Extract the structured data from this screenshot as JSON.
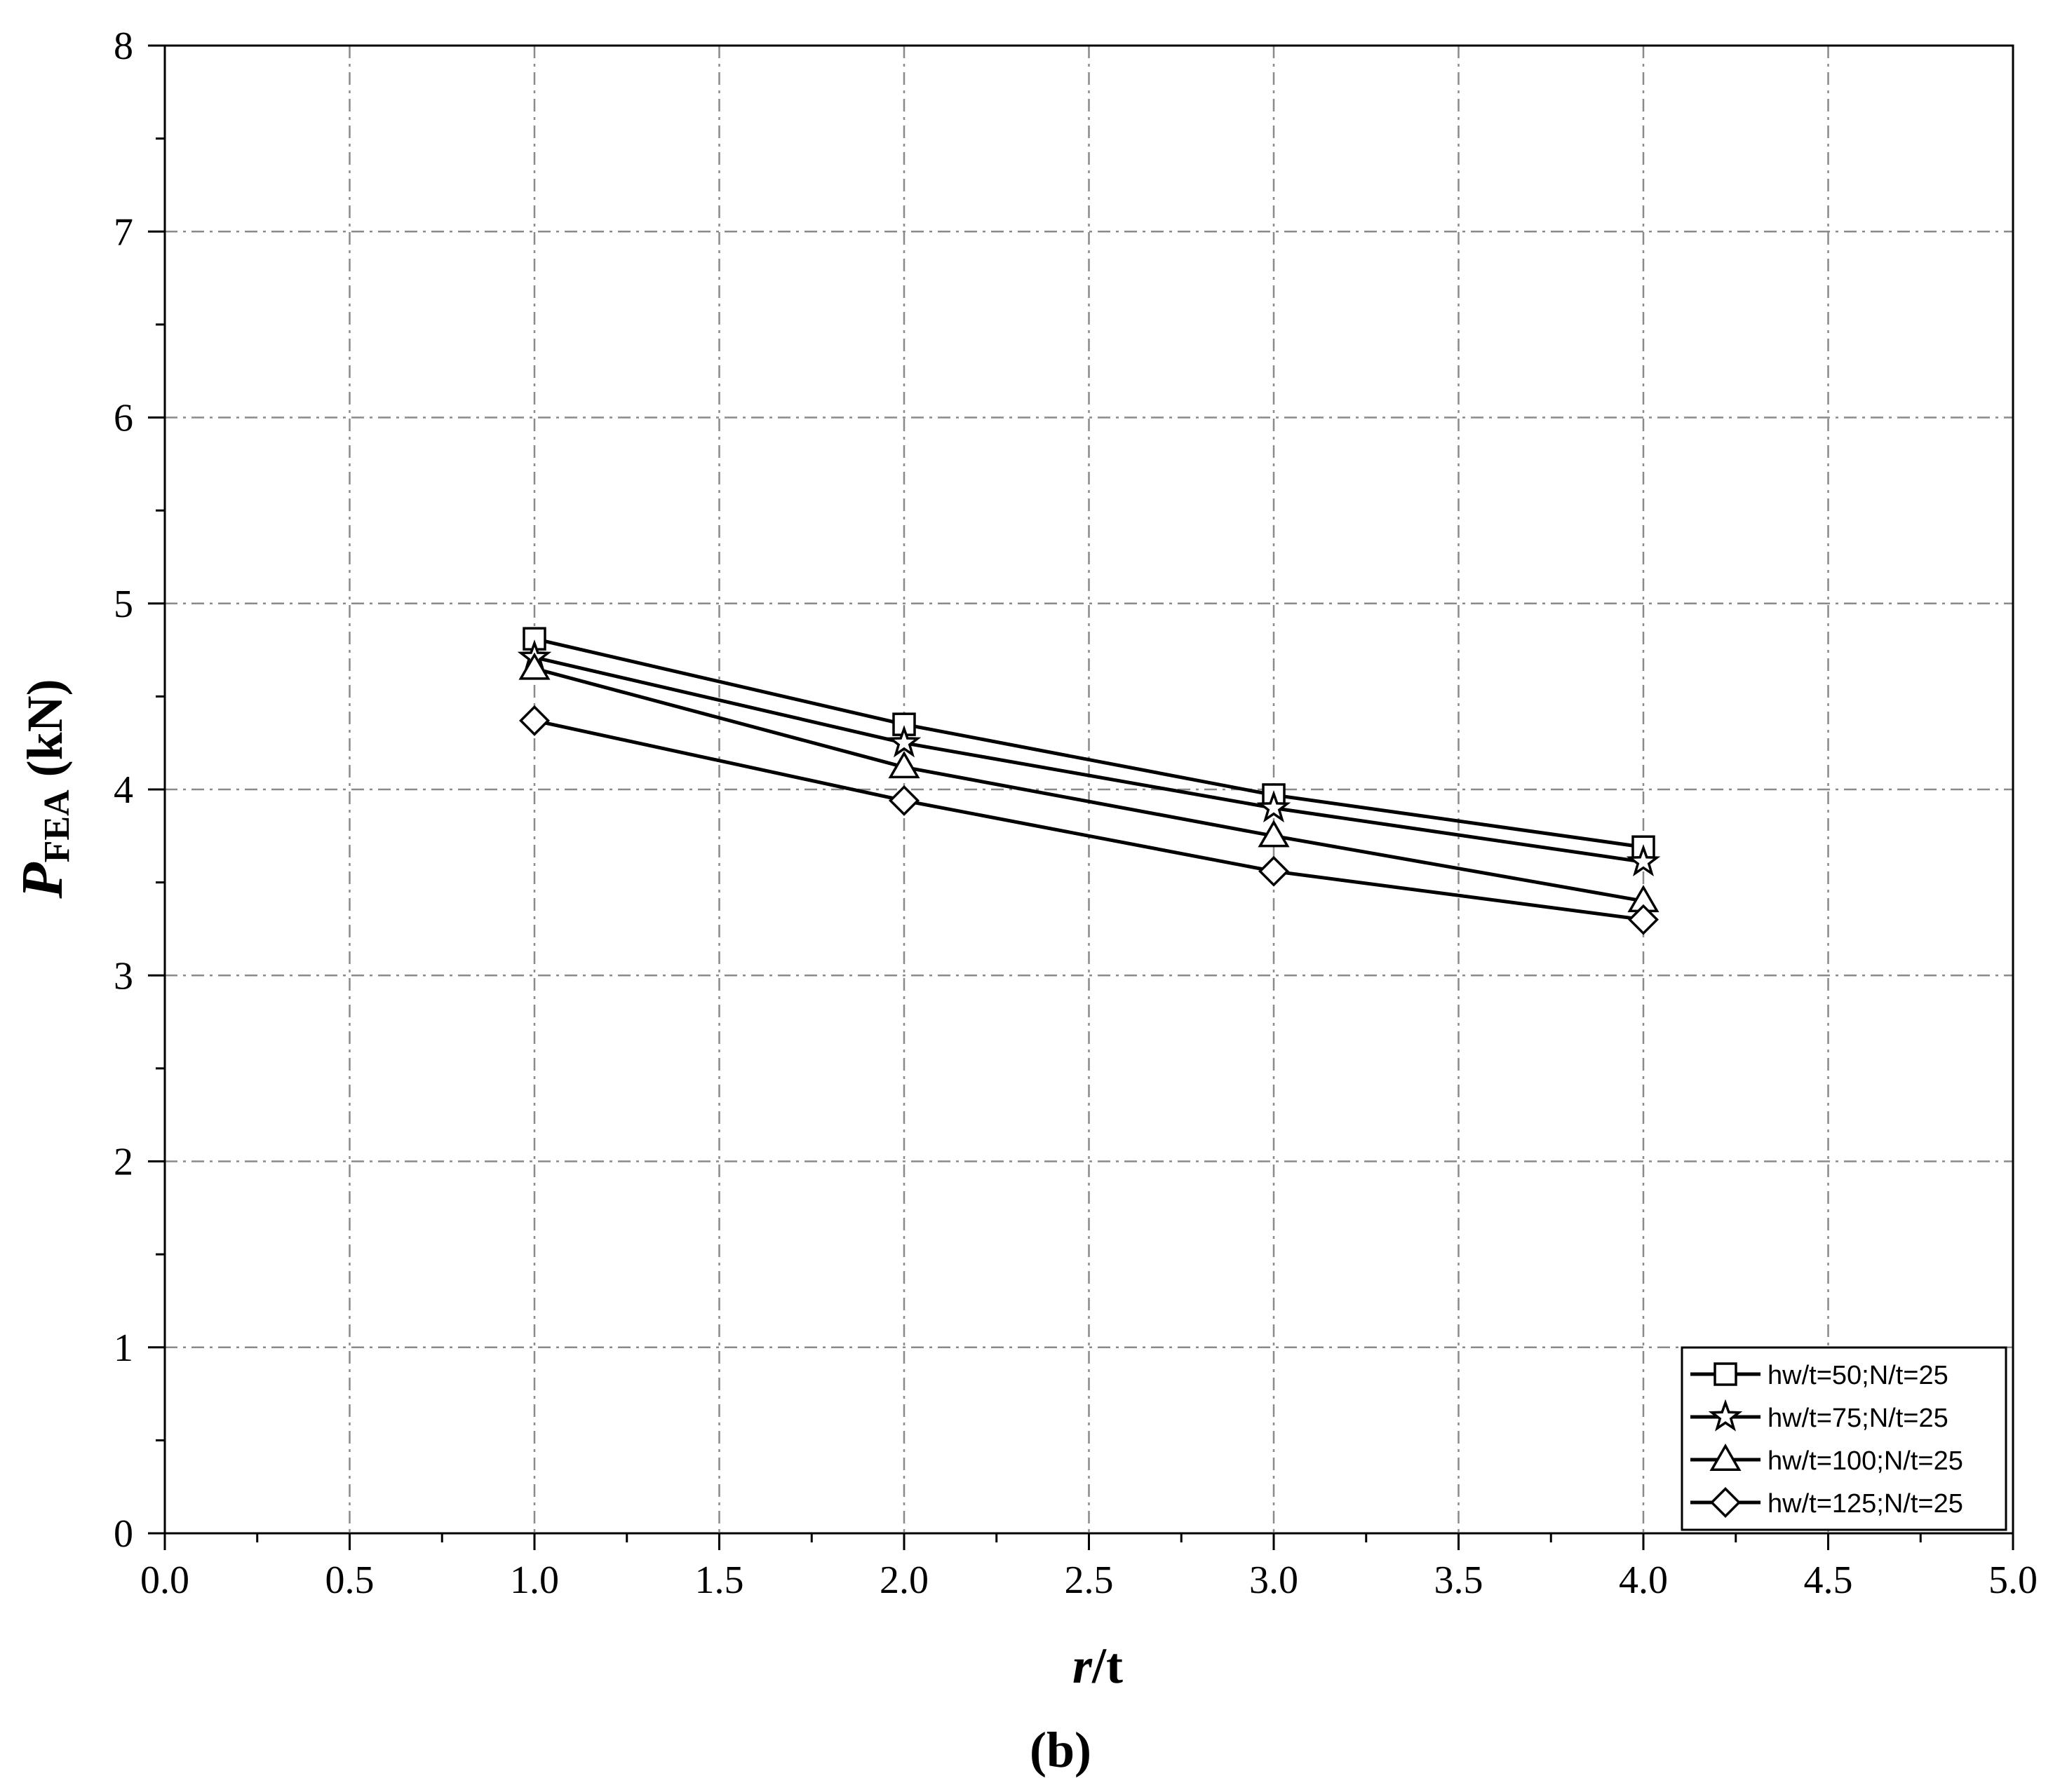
{
  "chart_data": {
    "type": "line",
    "xlabel": {
      "italic": "r",
      "rest": "/t"
    },
    "ylabel": {
      "main": "P",
      "sub": "FEA",
      "unit": " (kN)"
    },
    "xlim": [
      0.0,
      5.0
    ],
    "ylim": [
      0,
      8
    ],
    "x_ticks": [
      "0.0",
      "0.5",
      "1.0",
      "1.5",
      "2.0",
      "2.5",
      "3.0",
      "3.5",
      "4.0",
      "4.5",
      "5.0"
    ],
    "y_ticks": [
      "0",
      "1",
      "2",
      "3",
      "4",
      "5",
      "6",
      "7",
      "8"
    ],
    "grid": true,
    "legend_position": "bottom-right",
    "x": [
      1.0,
      2.0,
      3.0,
      4.0
    ],
    "series": [
      {
        "name": "hw/t=50;N/t=25",
        "marker": "square",
        "values": [
          4.81,
          4.35,
          3.97,
          3.69
        ]
      },
      {
        "name": "hw/t=75;N/t=25",
        "marker": "star",
        "values": [
          4.71,
          4.25,
          3.9,
          3.61
        ]
      },
      {
        "name": "hw/t=100;N/t=25",
        "marker": "triangle",
        "values": [
          4.65,
          4.12,
          3.75,
          3.4
        ]
      },
      {
        "name": "hw/t=125;N/t=25",
        "marker": "diamond",
        "values": [
          4.37,
          3.94,
          3.56,
          3.3
        ]
      }
    ],
    "line_color": "#000000",
    "marker_fill": "#ffffff"
  },
  "caption": "(b)"
}
